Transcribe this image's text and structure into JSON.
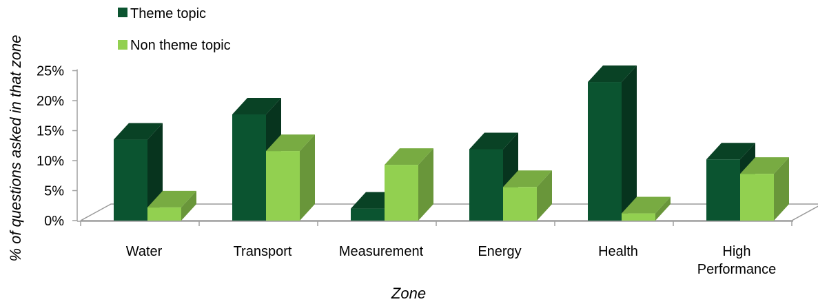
{
  "chart_data": {
    "type": "bar",
    "categories": [
      "Water",
      "Transport",
      "Measurement",
      "Energy",
      "Health",
      "High Performance"
    ],
    "series": [
      {
        "name": "Theme topic",
        "values": [
          13.5,
          17.7,
          2.0,
          11.9,
          23.1,
          10.2
        ],
        "color": "#0b5430"
      },
      {
        "name": "Non theme topic",
        "values": [
          2.2,
          11.6,
          9.3,
          5.6,
          1.2,
          7.8
        ],
        "color": "#92d050"
      }
    ],
    "title": "",
    "xlabel": "Zone",
    "ylabel": "% of questions asked in that zone",
    "ylim": [
      0,
      25
    ],
    "yticks": [
      "0%",
      "5%",
      "10%",
      "15%",
      "20%",
      "25%"
    ],
    "grid": false,
    "legend_position": "top-left"
  }
}
